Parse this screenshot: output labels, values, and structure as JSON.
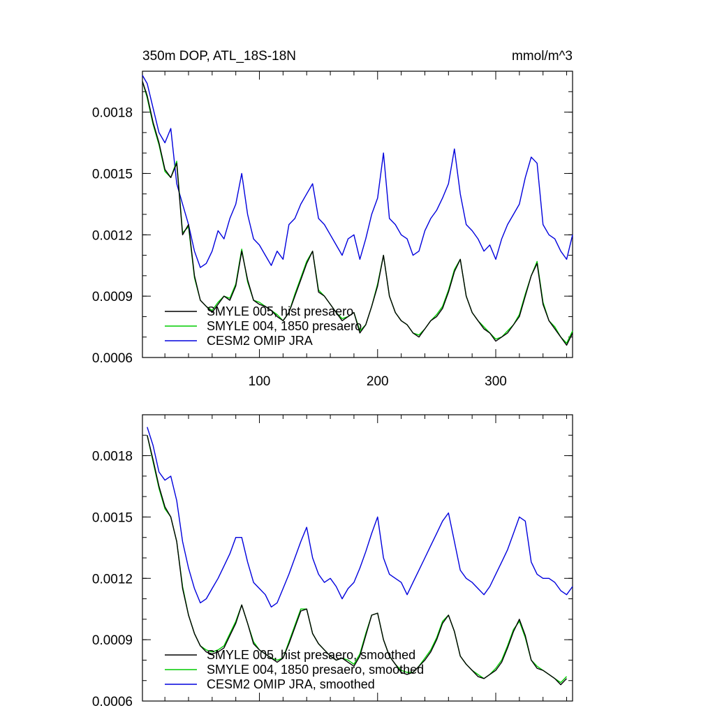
{
  "chart_data": [
    {
      "type": "line",
      "title_left": "350m DOP, ATL_18S-18N",
      "title_right": "mmol/m^3",
      "xlim": [
        1,
        365
      ],
      "ylim": [
        0.0006,
        0.002
      ],
      "xticks": [
        100,
        200,
        300
      ],
      "xtick_labels": [
        "100",
        "200",
        "300"
      ],
      "yticks": [
        0.0006,
        0.0009,
        0.0012,
        0.0015,
        0.0018
      ],
      "ytick_labels": [
        "0.0006",
        "0.0009",
        "0.0012",
        "0.0015",
        "0.0018"
      ],
      "legend_position": "bottom-left",
      "series": [
        {
          "name": "SMYLE 005, hist presaero",
          "color": "#000000",
          "x": [
            1,
            5,
            10,
            15,
            20,
            25,
            30,
            35,
            40,
            45,
            50,
            55,
            60,
            65,
            70,
            75,
            80,
            85,
            90,
            95,
            100,
            105,
            110,
            115,
            120,
            125,
            130,
            135,
            140,
            145,
            150,
            155,
            160,
            165,
            170,
            175,
            180,
            185,
            190,
            195,
            200,
            205,
            210,
            215,
            220,
            225,
            230,
            235,
            240,
            245,
            250,
            255,
            260,
            265,
            270,
            275,
            280,
            285,
            290,
            295,
            300,
            305,
            310,
            315,
            320,
            325,
            330,
            335,
            340,
            345,
            350,
            355,
            360,
            365
          ],
          "y": [
            0.00195,
            0.00188,
            0.00175,
            0.00165,
            0.00152,
            0.00148,
            0.00155,
            0.0012,
            0.00125,
            0.001,
            0.00088,
            0.00085,
            0.00082,
            0.00086,
            0.0009,
            0.00088,
            0.00095,
            0.00112,
            0.00098,
            0.00088,
            0.00086,
            0.00085,
            0.00083,
            0.0008,
            0.00078,
            0.00082,
            0.0009,
            0.00098,
            0.00106,
            0.00112,
            0.00092,
            0.0009,
            0.00086,
            0.00082,
            0.00078,
            0.0008,
            0.00082,
            0.00072,
            0.00076,
            0.00085,
            0.00095,
            0.0011,
            0.0009,
            0.00082,
            0.00078,
            0.00076,
            0.00072,
            0.0007,
            0.00074,
            0.00078,
            0.0008,
            0.00084,
            0.00092,
            0.00102,
            0.00108,
            0.0009,
            0.00082,
            0.00078,
            0.00074,
            0.00072,
            0.00068,
            0.0007,
            0.00072,
            0.00076,
            0.0008,
            0.0009,
            0.001,
            0.00106,
            0.00086,
            0.00078,
            0.00074,
            0.0007,
            0.00066,
            0.00072
          ]
        },
        {
          "name": "SMYLE 004, 1850 presaero",
          "color": "#00cc00",
          "x": [
            1,
            5,
            10,
            15,
            20,
            25,
            30,
            35,
            40,
            45,
            50,
            55,
            60,
            65,
            70,
            75,
            80,
            85,
            90,
            95,
            100,
            105,
            110,
            115,
            120,
            125,
            130,
            135,
            140,
            145,
            150,
            155,
            160,
            165,
            170,
            175,
            180,
            185,
            190,
            195,
            200,
            205,
            210,
            215,
            220,
            225,
            230,
            235,
            240,
            245,
            250,
            255,
            260,
            265,
            270,
            275,
            280,
            285,
            290,
            295,
            300,
            305,
            310,
            315,
            320,
            325,
            330,
            335,
            340,
            345,
            350,
            355,
            360,
            365
          ],
          "y": [
            0.00195,
            0.00187,
            0.00174,
            0.00164,
            0.00151,
            0.00148,
            0.00156,
            0.00121,
            0.00124,
            0.00099,
            0.00088,
            0.00085,
            0.00083,
            0.00087,
            0.0009,
            0.00089,
            0.00096,
            0.00113,
            0.00097,
            0.00088,
            0.00087,
            0.00085,
            0.00083,
            0.00081,
            0.00078,
            0.00082,
            0.00091,
            0.00099,
            0.00107,
            0.00112,
            0.00093,
            0.0009,
            0.00086,
            0.00082,
            0.00079,
            0.0008,
            0.00082,
            0.00073,
            0.00076,
            0.00085,
            0.00096,
            0.0011,
            0.0009,
            0.00082,
            0.00078,
            0.00076,
            0.00072,
            0.00071,
            0.00074,
            0.00078,
            0.00081,
            0.00085,
            0.00093,
            0.00103,
            0.00108,
            0.0009,
            0.00082,
            0.00078,
            0.00075,
            0.00072,
            0.00069,
            0.0007,
            0.00073,
            0.00076,
            0.00081,
            0.00091,
            0.001,
            0.00107,
            0.00087,
            0.00078,
            0.00075,
            0.0007,
            0.00067,
            0.00073
          ]
        },
        {
          "name": "CESM2 OMIP JRA",
          "color": "#0000dd",
          "x": [
            1,
            5,
            10,
            15,
            20,
            25,
            30,
            35,
            40,
            45,
            50,
            55,
            60,
            65,
            70,
            75,
            80,
            85,
            90,
            95,
            100,
            105,
            110,
            115,
            120,
            125,
            130,
            135,
            140,
            145,
            150,
            155,
            160,
            165,
            170,
            175,
            180,
            185,
            190,
            195,
            200,
            205,
            210,
            215,
            220,
            225,
            230,
            235,
            240,
            245,
            250,
            255,
            260,
            265,
            270,
            275,
            280,
            285,
            290,
            295,
            300,
            305,
            310,
            315,
            320,
            325,
            330,
            335,
            340,
            345,
            350,
            355,
            360,
            365
          ],
          "y": [
            0.00198,
            0.00194,
            0.00182,
            0.0017,
            0.00165,
            0.00172,
            0.00145,
            0.00135,
            0.00125,
            0.00112,
            0.00104,
            0.00106,
            0.00112,
            0.00122,
            0.00118,
            0.00128,
            0.00135,
            0.0015,
            0.0013,
            0.00118,
            0.00115,
            0.0011,
            0.00105,
            0.00112,
            0.00108,
            0.00125,
            0.00128,
            0.00135,
            0.0014,
            0.00145,
            0.00128,
            0.00125,
            0.0012,
            0.00115,
            0.0011,
            0.00118,
            0.0012,
            0.00108,
            0.00118,
            0.0013,
            0.00138,
            0.0016,
            0.00128,
            0.00125,
            0.0012,
            0.00118,
            0.0011,
            0.00112,
            0.00122,
            0.00128,
            0.00132,
            0.00138,
            0.00145,
            0.00162,
            0.0014,
            0.00125,
            0.00122,
            0.00118,
            0.00112,
            0.00115,
            0.00108,
            0.00118,
            0.00125,
            0.0013,
            0.00135,
            0.00148,
            0.00158,
            0.00155,
            0.00125,
            0.0012,
            0.00118,
            0.00112,
            0.00108,
            0.0012
          ]
        }
      ]
    },
    {
      "type": "line",
      "title_left": "",
      "title_right": "",
      "xlim": [
        1,
        365
      ],
      "ylim": [
        0.0006,
        0.002
      ],
      "xticks": [
        100,
        200,
        300
      ],
      "xtick_labels": [],
      "yticks": [
        0.0006,
        0.0009,
        0.0012,
        0.0015,
        0.0018
      ],
      "ytick_labels": [
        "0.0006",
        "0.0009",
        "0.0012",
        "0.0015",
        "0.0018"
      ],
      "legend_position": "bottom-left",
      "series": [
        {
          "name": "SMYLE 005, hist presaero, smoothed",
          "color": "#000000",
          "x": [
            5,
            10,
            15,
            20,
            25,
            30,
            35,
            40,
            45,
            50,
            55,
            60,
            65,
            70,
            75,
            80,
            85,
            90,
            95,
            100,
            105,
            110,
            115,
            120,
            125,
            130,
            135,
            140,
            145,
            150,
            155,
            160,
            165,
            170,
            175,
            180,
            185,
            190,
            195,
            200,
            205,
            210,
            215,
            220,
            225,
            230,
            235,
            240,
            245,
            250,
            255,
            260,
            265,
            270,
            275,
            280,
            285,
            290,
            295,
            300,
            305,
            310,
            315,
            320,
            325,
            330,
            335,
            340,
            345,
            350,
            355,
            360
          ],
          "y": [
            0.0019,
            0.00178,
            0.00165,
            0.00155,
            0.0015,
            0.00138,
            0.00115,
            0.00102,
            0.00093,
            0.00087,
            0.00084,
            0.00083,
            0.00084,
            0.00086,
            0.00092,
            0.00098,
            0.00107,
            0.00098,
            0.00088,
            0.00085,
            0.00083,
            0.00081,
            0.00079,
            0.00081,
            0.00088,
            0.00096,
            0.00104,
            0.00105,
            0.00093,
            0.00088,
            0.00085,
            0.00082,
            0.0008,
            0.00081,
            0.00079,
            0.00077,
            0.00082,
            0.00092,
            0.00102,
            0.00103,
            0.0009,
            0.00082,
            0.00078,
            0.00074,
            0.00073,
            0.00074,
            0.00077,
            0.0008,
            0.00084,
            0.0009,
            0.00098,
            0.00102,
            0.00094,
            0.00082,
            0.00078,
            0.00075,
            0.00072,
            0.00071,
            0.00073,
            0.00075,
            0.00079,
            0.00086,
            0.00094,
            0.001,
            0.00092,
            0.0008,
            0.00076,
            0.00075,
            0.00073,
            0.00071,
            0.00068,
            0.00071
          ]
        },
        {
          "name": "SMYLE 004, 1850 presaero, smoothed",
          "color": "#00cc00",
          "x": [
            5,
            10,
            15,
            20,
            25,
            30,
            35,
            40,
            45,
            50,
            55,
            60,
            65,
            70,
            75,
            80,
            85,
            90,
            95,
            100,
            105,
            110,
            115,
            120,
            125,
            130,
            135,
            140,
            145,
            150,
            155,
            160,
            165,
            170,
            175,
            180,
            185,
            190,
            195,
            200,
            205,
            210,
            215,
            220,
            225,
            230,
            235,
            240,
            245,
            250,
            255,
            260,
            265,
            270,
            275,
            280,
            285,
            290,
            295,
            300,
            305,
            310,
            315,
            320,
            325,
            330,
            335,
            340,
            345,
            350,
            355,
            360
          ],
          "y": [
            0.0019,
            0.00177,
            0.00164,
            0.00154,
            0.0015,
            0.00138,
            0.00116,
            0.00102,
            0.00093,
            0.00087,
            0.00085,
            0.00084,
            0.00085,
            0.00087,
            0.00093,
            0.00099,
            0.00107,
            0.00098,
            0.00089,
            0.00085,
            0.00083,
            0.00081,
            0.0008,
            0.00081,
            0.00089,
            0.00097,
            0.00105,
            0.00105,
            0.00093,
            0.00088,
            0.00085,
            0.00082,
            0.0008,
            0.00081,
            0.0008,
            0.00078,
            0.00083,
            0.00093,
            0.00102,
            0.00103,
            0.0009,
            0.00082,
            0.00078,
            0.00075,
            0.00074,
            0.00074,
            0.00077,
            0.00081,
            0.00085,
            0.00091,
            0.00099,
            0.00102,
            0.00094,
            0.00082,
            0.00078,
            0.00075,
            0.00073,
            0.00071,
            0.00073,
            0.00076,
            0.0008,
            0.00087,
            0.00095,
            0.00099,
            0.00091,
            0.0008,
            0.00077,
            0.00075,
            0.00073,
            0.00071,
            0.00069,
            0.00072
          ]
        },
        {
          "name": "CESM2 OMIP JRA, smoothed",
          "color": "#0000dd",
          "x": [
            5,
            10,
            15,
            20,
            25,
            30,
            35,
            40,
            45,
            50,
            55,
            60,
            65,
            70,
            75,
            80,
            85,
            90,
            95,
            100,
            105,
            110,
            115,
            120,
            125,
            130,
            135,
            140,
            145,
            150,
            155,
            160,
            165,
            170,
            175,
            180,
            185,
            190,
            195,
            200,
            205,
            210,
            215,
            220,
            225,
            230,
            235,
            240,
            245,
            250,
            255,
            260,
            265,
            270,
            275,
            280,
            285,
            290,
            295,
            300,
            305,
            310,
            315,
            320,
            325,
            330,
            335,
            340,
            345,
            350,
            355,
            360,
            365
          ],
          "y": [
            0.00194,
            0.00185,
            0.00172,
            0.00168,
            0.0017,
            0.00158,
            0.00138,
            0.00125,
            0.00115,
            0.00108,
            0.0011,
            0.00115,
            0.0012,
            0.00126,
            0.00132,
            0.0014,
            0.0014,
            0.00128,
            0.00118,
            0.00115,
            0.00112,
            0.00106,
            0.00108,
            0.00115,
            0.00122,
            0.0013,
            0.00138,
            0.00145,
            0.0013,
            0.00122,
            0.00118,
            0.0012,
            0.00116,
            0.0011,
            0.00115,
            0.00118,
            0.00125,
            0.00133,
            0.00142,
            0.0015,
            0.0013,
            0.00122,
            0.0012,
            0.00118,
            0.00112,
            0.00118,
            0.00124,
            0.0013,
            0.00136,
            0.00142,
            0.00148,
            0.00152,
            0.00138,
            0.00124,
            0.0012,
            0.00118,
            0.00115,
            0.00112,
            0.00116,
            0.00122,
            0.00128,
            0.00134,
            0.00142,
            0.0015,
            0.00148,
            0.00128,
            0.00122,
            0.0012,
            0.0012,
            0.00118,
            0.00114,
            0.00112,
            0.00116
          ]
        }
      ]
    }
  ]
}
